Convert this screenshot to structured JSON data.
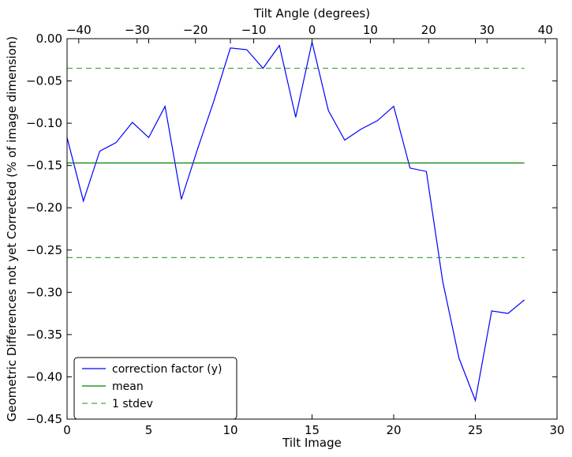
{
  "chart_data": {
    "type": "line",
    "xlabel": "Tilt Image",
    "ylabel": "Geometric Differences not yet Corrected (% of image dimension)",
    "x2label": "Tilt Angle (degrees)",
    "xlim": [
      0,
      30
    ],
    "ylim": [
      -0.45,
      0.0
    ],
    "x_ticks": [
      0,
      5,
      10,
      15,
      20,
      25,
      30
    ],
    "y_ticks": [
      0.0,
      -0.05,
      -0.1,
      -0.15,
      -0.2,
      -0.25,
      -0.3,
      -0.35,
      -0.4,
      -0.45
    ],
    "y_tick_labels": [
      "0.00",
      "−0.05",
      "−0.10",
      "−0.15",
      "−0.20",
      "−0.25",
      "−0.30",
      "−0.35",
      "−0.40",
      "−0.45"
    ],
    "x2lim": [
      -42,
      42
    ],
    "x2_ticks": [
      -40,
      -30,
      -20,
      -10,
      0,
      10,
      20,
      30,
      40
    ],
    "x2_tick_labels": [
      "−40",
      "−30",
      "−20",
      "−10",
      "0",
      "10",
      "20",
      "30",
      "40"
    ],
    "grid": false,
    "legend_position": "lower-left",
    "series": [
      {
        "name": "correction factor (y)",
        "color": "#0000ff",
        "style": "solid",
        "x": [
          0,
          1,
          2,
          3,
          4,
          5,
          6,
          7,
          8,
          9,
          10,
          11,
          12,
          13,
          14,
          15,
          16,
          17,
          18,
          19,
          20,
          21,
          22,
          23,
          24,
          25,
          26,
          27,
          28
        ],
        "y": [
          -0.117,
          -0.192,
          -0.133,
          -0.123,
          -0.099,
          -0.117,
          -0.08,
          -0.19,
          -0.13,
          -0.073,
          -0.011,
          -0.013,
          -0.035,
          -0.008,
          -0.093,
          -0.004,
          -0.085,
          -0.12,
          -0.107,
          -0.097,
          -0.08,
          -0.153,
          -0.157,
          -0.287,
          -0.378,
          -0.428,
          -0.322,
          -0.325,
          -0.309
        ]
      },
      {
        "name": "mean",
        "color": "#008000",
        "style": "solid",
        "x": [
          0,
          28
        ],
        "y": [
          -0.147,
          -0.147
        ]
      },
      {
        "name": "1 stdev",
        "color": "#008000",
        "style": "dashed",
        "x": [
          0,
          28
        ],
        "y": [
          -0.035,
          -0.035
        ]
      },
      {
        "name": "",
        "color": "#008000",
        "style": "dashed",
        "x": [
          0,
          28
        ],
        "y": [
          -0.259,
          -0.259
        ]
      }
    ]
  }
}
